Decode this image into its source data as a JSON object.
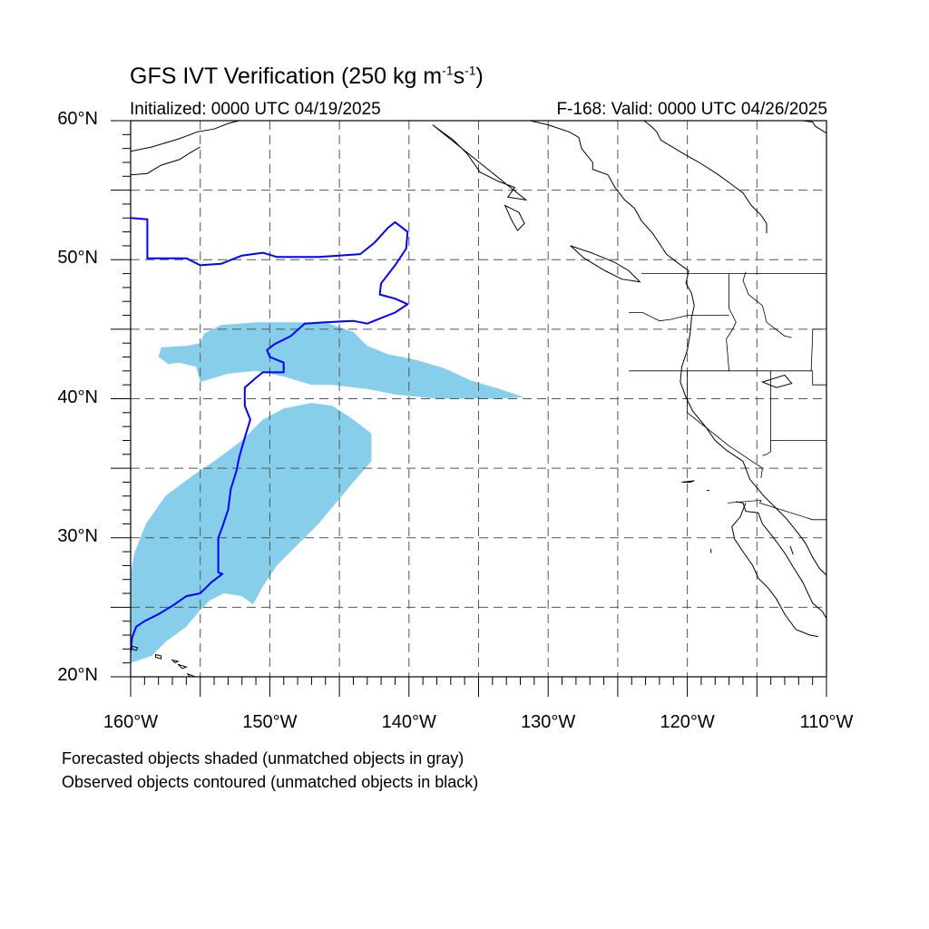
{
  "title": {
    "main": "GFS IVT Verification (250 kg m",
    "unit_exp1": "-1",
    "unit_mid": "s",
    "unit_exp2": "-1",
    "close": ")"
  },
  "initialized": "Initialized: 0000 UTC 04/19/2025",
  "valid": "F-168: Valid: 0000 UTC 04/26/2025",
  "axes": {
    "y_ticks": [
      {
        "value": 60,
        "label": "60°N"
      },
      {
        "value": 50,
        "label": "50°N"
      },
      {
        "value": 40,
        "label": "40°N"
      },
      {
        "value": 30,
        "label": "30°N"
      },
      {
        "value": 20,
        "label": "20°N"
      }
    ],
    "x_ticks": [
      {
        "value": -160,
        "label": "160°W"
      },
      {
        "value": -150,
        "label": "150°W"
      },
      {
        "value": -140,
        "label": "140°W"
      },
      {
        "value": -130,
        "label": "130°W"
      },
      {
        "value": -120,
        "label": "120°W"
      },
      {
        "value": -110,
        "label": "110°W"
      }
    ],
    "lon_range": [
      -160,
      -110
    ],
    "lat_range": [
      20,
      60
    ],
    "grid_lons": [
      -155,
      -150,
      -145,
      -140,
      -135,
      -130,
      -125,
      -120,
      -115
    ],
    "grid_lats": [
      25,
      30,
      35,
      40,
      45,
      50,
      55
    ],
    "grid": true
  },
  "colors": {
    "forecast_fill": "#87ceeb",
    "observed_contour": "#0000ff",
    "coast": "#000000"
  },
  "forecast_objects": [
    {
      "name": "northern-band",
      "polygon": [
        [
          -157.8,
          43.7
        ],
        [
          -156,
          43.8
        ],
        [
          -155,
          44
        ],
        [
          -154.7,
          44.7
        ],
        [
          -153.5,
          45.3
        ],
        [
          -151,
          45.5
        ],
        [
          -149,
          45.5
        ],
        [
          -146,
          45.5
        ],
        [
          -144,
          44.8
        ],
        [
          -143,
          43.8
        ],
        [
          -141.5,
          43.2
        ],
        [
          -139.5,
          42.8
        ],
        [
          -137.5,
          42.2
        ],
        [
          -135.5,
          41.3
        ],
        [
          -133.5,
          40.7
        ],
        [
          -131.7,
          40.1
        ],
        [
          -134,
          40
        ],
        [
          -138,
          40
        ],
        [
          -141,
          40.3
        ],
        [
          -143,
          40.7
        ],
        [
          -145.5,
          41
        ],
        [
          -147,
          41
        ],
        [
          -149,
          41.6
        ],
        [
          -151,
          42
        ],
        [
          -153,
          41.8
        ],
        [
          -155,
          41.2
        ],
        [
          -155.3,
          42.3
        ],
        [
          -156.5,
          42.6
        ],
        [
          -157.3,
          42.5
        ],
        [
          -158,
          43
        ]
      ]
    },
    {
      "name": "southern-band",
      "polygon": [
        [
          -160,
          27.5
        ],
        [
          -159.7,
          29
        ],
        [
          -158.9,
          31
        ],
        [
          -157.5,
          33
        ],
        [
          -155.5,
          34.5
        ],
        [
          -154,
          35.5
        ],
        [
          -152,
          37
        ],
        [
          -150.5,
          38.5
        ],
        [
          -149,
          39.3
        ],
        [
          -147,
          39.7
        ],
        [
          -145.5,
          39.5
        ],
        [
          -144,
          38.5
        ],
        [
          -142.7,
          37.5
        ],
        [
          -142.7,
          35.5
        ],
        [
          -144,
          34
        ],
        [
          -145,
          32.8
        ],
        [
          -146.5,
          31
        ],
        [
          -148,
          29.5
        ],
        [
          -149.5,
          28
        ],
        [
          -150.5,
          26.5
        ],
        [
          -151.2,
          25.2
        ],
        [
          -152,
          25.8
        ],
        [
          -153.3,
          26
        ],
        [
          -154.3,
          25.5
        ],
        [
          -155,
          24.8
        ],
        [
          -156,
          23.6
        ],
        [
          -157.5,
          22.5
        ],
        [
          -158.5,
          21.5
        ],
        [
          -160,
          21
        ]
      ]
    }
  ],
  "observed_contour": {
    "name": "observed-object",
    "path": [
      [
        -160,
        53
      ],
      [
        -158.8,
        52.9
      ],
      [
        -158.8,
        50.1
      ],
      [
        -157.5,
        50.1
      ],
      [
        -156,
        50.1
      ],
      [
        -155,
        49.6
      ],
      [
        -153.5,
        49.7
      ],
      [
        -152,
        50.3
      ],
      [
        -150.5,
        50.5
      ],
      [
        -149.5,
        50.2
      ],
      [
        -148,
        50.2
      ],
      [
        -146.5,
        50.2
      ],
      [
        -145,
        50.3
      ],
      [
        -143.5,
        50.4
      ],
      [
        -142.5,
        51.2
      ],
      [
        -141.5,
        52.3
      ],
      [
        -141,
        52.7
      ],
      [
        -140.1,
        52
      ],
      [
        -140.2,
        50.8
      ],
      [
        -141,
        49.6
      ],
      [
        -142,
        48.3
      ],
      [
        -142.1,
        47.5
      ],
      [
        -141,
        47.2
      ],
      [
        -140.1,
        46.8
      ],
      [
        -141,
        46.2
      ],
      [
        -142,
        45.8
      ],
      [
        -143,
        45.4
      ],
      [
        -144,
        45.6
      ],
      [
        -146,
        45.5
      ],
      [
        -147.5,
        45.4
      ],
      [
        -148.5,
        44.5
      ],
      [
        -149.7,
        43.9
      ],
      [
        -150.2,
        43.5
      ],
      [
        -150,
        43
      ],
      [
        -149,
        42.6
      ],
      [
        -149,
        41.9
      ],
      [
        -150.5,
        41.9
      ],
      [
        -151,
        41.5
      ],
      [
        -151.8,
        40.8
      ],
      [
        -151.8,
        39.5
      ],
      [
        -151.4,
        38.5
      ],
      [
        -151.8,
        37.2
      ],
      [
        -152.2,
        35.8
      ],
      [
        -152.4,
        34.8
      ],
      [
        -152.8,
        33.5
      ],
      [
        -153,
        32
      ],
      [
        -153.4,
        30.8
      ],
      [
        -153.7,
        30
      ],
      [
        -153.7,
        28.5
      ],
      [
        -153.7,
        27.5
      ],
      [
        -153.4,
        27.4
      ],
      [
        -154.2,
        26.8
      ],
      [
        -155,
        26
      ],
      [
        -156,
        25.8
      ],
      [
        -157,
        25.1
      ],
      [
        -158,
        24.5
      ],
      [
        -159,
        24
      ],
      [
        -159.6,
        23.6
      ],
      [
        -159.9,
        22.8
      ],
      [
        -160,
        21.8
      ]
    ]
  },
  "coastlines": [
    [
      [
        -131.3,
        60
      ],
      [
        -130,
        59.7
      ],
      [
        -128.5,
        59.2
      ],
      [
        -127.8,
        58.8
      ],
      [
        -127.6,
        58
      ],
      [
        -126.8,
        57
      ],
      [
        -126.8,
        56.5
      ],
      [
        -125.7,
        56.1
      ],
      [
        -125.2,
        55.2
      ],
      [
        -124.5,
        54.3
      ],
      [
        -123.8,
        53.7
      ],
      [
        -123.3,
        52.8
      ],
      [
        -122.5,
        51.9
      ],
      [
        -121.9,
        51
      ],
      [
        -121.5,
        50.4
      ],
      [
        -120.6,
        49.7
      ],
      [
        -119.9,
        49.2
      ],
      [
        -120.1,
        48.3
      ],
      [
        -119.7,
        47.6
      ],
      [
        -119.5,
        46.7
      ],
      [
        -119.7,
        45.8
      ],
      [
        -119.8,
        44.7
      ],
      [
        -120,
        43.5
      ],
      [
        -120.4,
        42.3
      ],
      [
        -120.5,
        41.2
      ],
      [
        -120.1,
        40.1
      ],
      [
        -119.6,
        39.1
      ],
      [
        -118.7,
        38
      ],
      [
        -118,
        37
      ],
      [
        -117.2,
        36.3
      ],
      [
        -116,
        35.5
      ],
      [
        -115.5,
        34.2
      ],
      [
        -114.5,
        33
      ],
      [
        -113.5,
        32
      ],
      [
        -112.9,
        31.4
      ],
      [
        -112.1,
        30.4
      ],
      [
        -111.5,
        29.6
      ],
      [
        -111,
        28.6
      ],
      [
        -110.5,
        27.8
      ],
      [
        -110,
        27.3
      ]
    ],
    [
      [
        -110,
        24.2
      ],
      [
        -110.3,
        24.7
      ],
      [
        -111,
        25.3
      ],
      [
        -111.7,
        26.8
      ],
      [
        -112.4,
        27.9
      ],
      [
        -113,
        28.9
      ],
      [
        -113.8,
        30
      ],
      [
        -114.6,
        31
      ],
      [
        -114.9,
        31.8
      ],
      [
        -115.8,
        31.9
      ],
      [
        -116,
        32.5
      ],
      [
        -116.5,
        32.6
      ]
    ],
    [
      [
        -115.8,
        32.5
      ],
      [
        -116.2,
        31.5
      ],
      [
        -116.8,
        30.8
      ],
      [
        -116.6,
        29.9
      ],
      [
        -116,
        29
      ],
      [
        -115.3,
        28
      ],
      [
        -114.9,
        27.1
      ],
      [
        -114.2,
        26.4
      ],
      [
        -113.6,
        25.6
      ],
      [
        -113,
        24.5
      ],
      [
        -112.2,
        23.4
      ],
      [
        -111.2,
        23
      ],
      [
        -110.6,
        22.9
      ]
    ],
    [
      [
        -160,
        57.8
      ],
      [
        -158.5,
        58.1
      ],
      [
        -157.5,
        58.4
      ],
      [
        -156.5,
        58.7
      ],
      [
        -155.2,
        59.2
      ],
      [
        -154,
        59.4
      ],
      [
        -153,
        59.8
      ],
      [
        -152.2,
        60
      ]
    ],
    [
      [
        -160,
        56.1
      ],
      [
        -158.8,
        56.2
      ],
      [
        -157.8,
        56.8
      ],
      [
        -156.5,
        57.2
      ],
      [
        -155.7,
        57.7
      ],
      [
        -155,
        58.1
      ]
    ],
    [
      [
        -123.1,
        60
      ],
      [
        -122.6,
        59.6
      ],
      [
        -122.2,
        59.2
      ],
      [
        -121.9,
        58.6
      ],
      [
        -120.4,
        57.7
      ],
      [
        -119,
        56.9
      ],
      [
        -117.9,
        56.2
      ],
      [
        -116.8,
        55.4
      ],
      [
        -116,
        54.8
      ],
      [
        -115.4,
        53.9
      ],
      [
        -114.7,
        53.2
      ],
      [
        -114.3,
        52.6
      ],
      [
        -114.3,
        51.9
      ]
    ],
    [
      [
        -110,
        59.1
      ],
      [
        -110.8,
        59.6
      ],
      [
        -111,
        59.9
      ],
      [
        -111.7,
        60
      ]
    ]
  ],
  "islands": [
    [
      [
        -159.9,
        22.2
      ],
      [
        -159.5,
        22.1
      ],
      [
        -159.6,
        21.9
      ],
      [
        -159.9,
        22
      ]
    ],
    [
      [
        -158.2,
        21.6
      ],
      [
        -157.8,
        21.5
      ],
      [
        -157.8,
        21.3
      ],
      [
        -158.2,
        21.4
      ]
    ],
    [
      [
        -157,
        21.2
      ],
      [
        -156.6,
        21.1
      ],
      [
        -156.8,
        21
      ]
    ],
    [
      [
        -156.6,
        20.9
      ],
      [
        -156,
        20.7
      ],
      [
        -156.3,
        20.6
      ]
    ],
    [
      [
        -155.9,
        20.2
      ],
      [
        -155.1,
        19.9
      ],
      [
        -155.5,
        19.6
      ]
    ],
    [
      [
        -138.3,
        59.7
      ],
      [
        -136.8,
        58.6
      ],
      [
        -135.8,
        57.6
      ],
      [
        -134.9,
        56.3
      ],
      [
        -133.5,
        55.6
      ],
      [
        -132.4,
        55.2
      ],
      [
        -132.9,
        54.5
      ],
      [
        -131.6,
        54.3
      ]
    ],
    [
      [
        -133.1,
        53.9
      ],
      [
        -132.1,
        53.4
      ],
      [
        -131.7,
        52.6
      ],
      [
        -132.2,
        52.1
      ],
      [
        -132.6,
        52.8
      ]
    ],
    [
      [
        -128.4,
        51
      ],
      [
        -126.9,
        50.5
      ],
      [
        -125.2,
        49.8
      ],
      [
        -124.2,
        49.2
      ],
      [
        -123.4,
        48.4
      ],
      [
        -124.7,
        48.6
      ],
      [
        -125.9,
        49.2
      ],
      [
        -127.4,
        50.1
      ]
    ],
    [
      [
        -119.5,
        34.1
      ],
      [
        -119.8,
        34
      ],
      [
        -120.4,
        34
      ]
    ],
    [
      [
        -118.4,
        33.4
      ],
      [
        -118.6,
        33.4
      ]
    ],
    [
      [
        -118.3,
        29.2
      ],
      [
        -118.3,
        28.9
      ]
    ],
    [
      [
        -112.4,
        28.8
      ],
      [
        -112.6,
        29.4
      ]
    ],
    [
      [
        -114.6,
        41.2
      ],
      [
        -113,
        41.7
      ],
      [
        -112.5,
        41.1
      ],
      [
        -113.6,
        40.8
      ]
    ]
  ],
  "borders": [
    [
      [
        -123.3,
        49
      ],
      [
        -110,
        49
      ]
    ],
    [
      [
        -117,
        49
      ],
      [
        -117,
        46.5
      ],
      [
        -116.5,
        45.5
      ],
      [
        -116.8,
        44.9
      ],
      [
        -117.2,
        44.3
      ],
      [
        -117,
        42
      ]
    ],
    [
      [
        -124.2,
        46.2
      ],
      [
        -123.2,
        46.2
      ],
      [
        -122,
        45.6
      ],
      [
        -121.2,
        45.7
      ],
      [
        -120,
        46
      ],
      [
        -119,
        46
      ],
      [
        -117,
        46
      ]
    ],
    [
      [
        -124.2,
        42
      ],
      [
        -111,
        42
      ]
    ],
    [
      [
        -111,
        42
      ],
      [
        -111,
        41
      ],
      [
        -110,
        41
      ]
    ],
    [
      [
        -120,
        42
      ],
      [
        -120,
        39
      ],
      [
        -117,
        36.6
      ],
      [
        -114.6,
        35
      ],
      [
        -114.7,
        34.3
      ]
    ],
    [
      [
        -114,
        42
      ],
      [
        -114,
        36.2
      ],
      [
        -114.3,
        36
      ],
      [
        -114.6,
        35.9
      ]
    ],
    [
      [
        -110,
        37
      ],
      [
        -114,
        37
      ]
    ],
    [
      [
        -110,
        45
      ],
      [
        -111,
        45
      ],
      [
        -111,
        44.5
      ],
      [
        -111.1,
        42
      ]
    ],
    [
      [
        -117.1,
        32.5
      ],
      [
        -114.7,
        32.7
      ],
      [
        -114.8,
        32.5
      ],
      [
        -111,
        31.3
      ],
      [
        -110,
        31.3
      ]
    ],
    [
      [
        -115.8,
        49.1
      ],
      [
        -116,
        48.5
      ],
      [
        -115.6,
        47.5
      ],
      [
        -114.6,
        46.7
      ],
      [
        -114.3,
        45.5
      ],
      [
        -113,
        44.5
      ],
      [
        -112.5,
        44.4
      ]
    ]
  ],
  "footnote_1": "Forecasted objects shaded (unmatched objects in gray)",
  "footnote_2": "Observed objects contoured (unmatched objects in black)"
}
